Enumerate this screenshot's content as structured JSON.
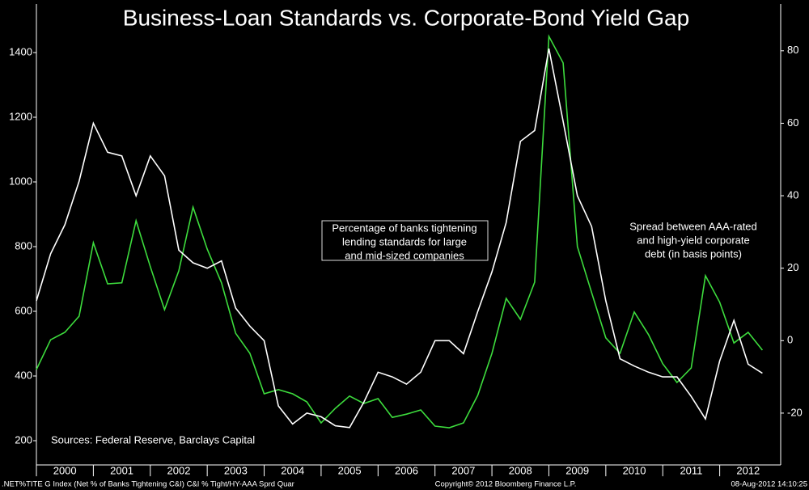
{
  "chart_data": {
    "type": "line",
    "title": "Business-Loan Standards vs. Corporate-Bond Yield Gap",
    "x": [
      2000,
      2000.25,
      2000.5,
      2000.75,
      2001,
      2001.25,
      2001.5,
      2001.75,
      2002,
      2002.25,
      2002.5,
      2002.75,
      2003,
      2003.25,
      2003.5,
      2003.75,
      2004,
      2004.25,
      2004.5,
      2004.75,
      2005,
      2005.25,
      2005.5,
      2005.75,
      2006,
      2006.25,
      2006.5,
      2006.75,
      2007,
      2007.25,
      2007.5,
      2007.75,
      2008,
      2008.25,
      2008.5,
      2008.75,
      2009,
      2009.25,
      2009.5,
      2009.75,
      2010,
      2010.25,
      2010.5,
      2010.75,
      2011,
      2011.25,
      2011.5,
      2011.75,
      2012,
      2012.25,
      2012.5,
      2012.75
    ],
    "xlim": [
      2000,
      2013
    ],
    "xticks": [
      2000,
      2001,
      2002,
      2003,
      2004,
      2005,
      2006,
      2007,
      2008,
      2009,
      2010,
      2011,
      2012
    ],
    "series": [
      {
        "color": "#ffffff",
        "axis": "y2",
        "values": [
          11,
          24,
          32,
          44,
          60,
          52,
          51,
          40,
          51,
          45.5,
          25,
          21.5,
          20,
          22,
          9,
          4,
          0,
          -18,
          -23,
          -20,
          -21,
          -23.5,
          -24,
          -17,
          -8.7,
          -10,
          -12,
          -8.7,
          0,
          0,
          -3.6,
          8,
          19,
          32.6,
          55,
          58,
          80.6,
          60.5,
          40,
          31.5,
          11,
          -5,
          -7,
          -8.7,
          -10,
          -10,
          -15.4,
          -21.6,
          -5.6,
          5.6,
          -6.5,
          -9
        ]
      },
      {
        "color": "#3ddc3d",
        "axis": "y",
        "values": [
          420,
          512,
          535,
          585,
          812,
          685,
          688,
          880,
          738,
          605,
          725,
          922,
          792,
          688,
          532,
          470,
          345,
          358,
          345,
          320,
          255,
          300,
          338,
          315,
          330,
          272,
          282,
          295,
          245,
          240,
          255,
          340,
          470,
          640,
          575,
          690,
          1450,
          1368,
          800,
          658,
          518,
          470,
          598,
          528,
          438,
          380,
          425,
          710,
          628,
          502,
          535,
          480
        ]
      }
    ],
    "ylim": [
      125,
      1550
    ],
    "yticks": [
      200,
      400,
      600,
      800,
      1000,
      1200,
      1400
    ],
    "y2lim": [
      -34.3,
      92.9
    ],
    "y2ticks": [
      -20,
      0,
      20,
      40,
      60,
      80
    ],
    "annotations": [
      {
        "lines": [
          "Percentage of banks tightening",
          "lending standards for large",
          "and mid-sized companies"
        ],
        "color": "#ffffff"
      },
      {
        "lines": [
          "Spread between AAA-rated",
          "and high-yield corporate",
          "debt (in basis points)"
        ],
        "color": "#3ddc3d"
      }
    ],
    "source": "Sources: Federal Reserve, Barclays Capital"
  },
  "footer": {
    "left": ".NET%TITE G Index (Net % of Banks Tightening C&I) C&I % Tight/HY-AAA Sprd  Quar",
    "center": "Copyright© 2012 Bloomberg Finance L.P.",
    "right": "08-Aug-2012 14:10:25"
  }
}
